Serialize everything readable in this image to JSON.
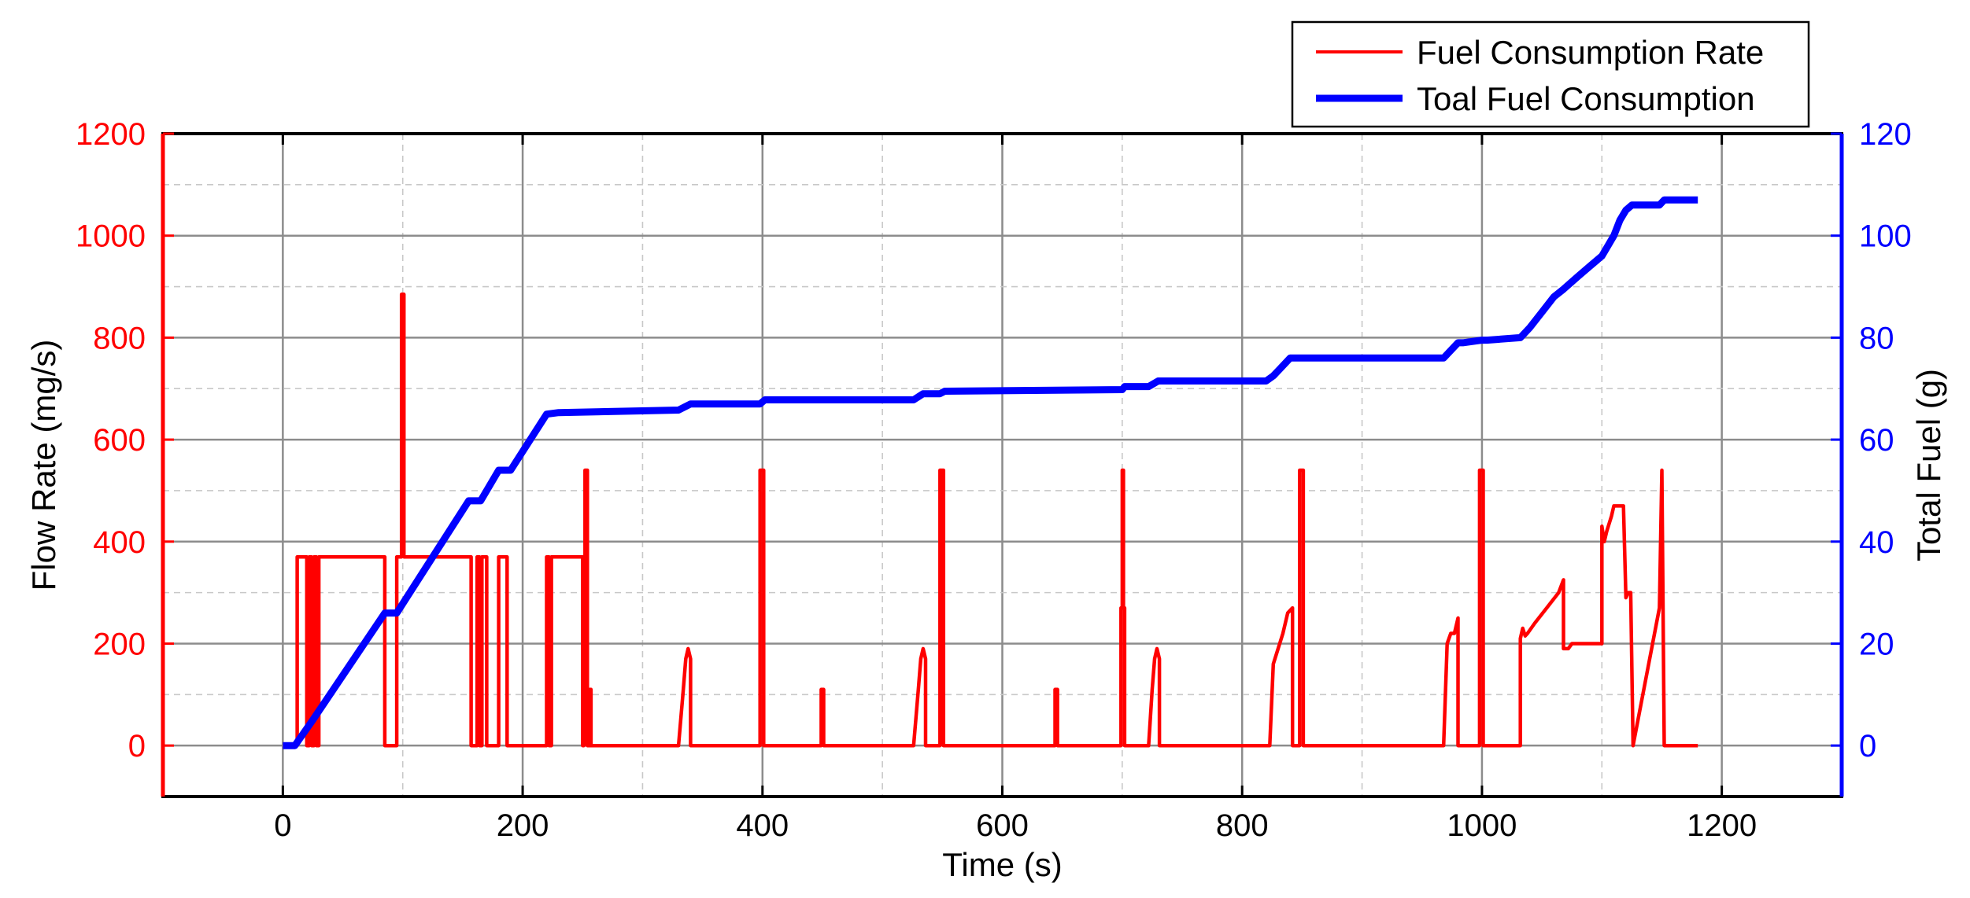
{
  "chart_data": {
    "type": "line",
    "xlabel": "Time (s)",
    "ylabel_left": "Flow Rate (mg/s)",
    "ylabel_right": "Total Fuel (g)",
    "xlim": [
      -100,
      1300
    ],
    "ylim_left": [
      -100,
      1200
    ],
    "ylim_right": [
      -10,
      120
    ],
    "x_ticks": [
      0,
      200,
      400,
      600,
      800,
      1000,
      1200
    ],
    "y_left_ticks": [
      0,
      200,
      400,
      600,
      800,
      1000,
      1200
    ],
    "y_right_ticks": [
      0,
      20,
      40,
      60,
      80,
      100,
      120
    ],
    "grid": true,
    "legend_position": "top-right",
    "colors": {
      "rate": "#ff0000",
      "total": "#0000ff",
      "left_axis": "#ff0000",
      "right_axis": "#0000ff"
    },
    "series": [
      {
        "name": "Fuel Consumption Rate",
        "axis": "left",
        "x": [
          0,
          12,
          12,
          20,
          20,
          22,
          22,
          24,
          24,
          26,
          26,
          28,
          28,
          30,
          30,
          85,
          85,
          95,
          95,
          99,
          99,
          101,
          101,
          157,
          157,
          162,
          162,
          164,
          164,
          166,
          166,
          170,
          170,
          180,
          180,
          187,
          187,
          220,
          220,
          222,
          222,
          224,
          224,
          250,
          250,
          251,
          251,
          252,
          252,
          254,
          254,
          256,
          256,
          257,
          257,
          330,
          334,
          336,
          338,
          340,
          340,
          398,
          398,
          401,
          401,
          449,
          449,
          451,
          451,
          526,
          530,
          532,
          534,
          536,
          536,
          548,
          548,
          551,
          551,
          644,
          644,
          646,
          646,
          699,
          699,
          700,
          700,
          701,
          701,
          702,
          702,
          722,
          725,
          727,
          729,
          731,
          731,
          823,
          826,
          830,
          834,
          838,
          842,
          842,
          848,
          848,
          851,
          851,
          968,
          971,
          974,
          977,
          980,
          980,
          998,
          998,
          1001,
          1001,
          1032,
          1032,
          1034,
          1036,
          1038,
          1044,
          1054,
          1064,
          1068,
          1068,
          1072,
          1075,
          1085,
          1095,
          1098,
          1100,
          1100,
          1102,
          1104,
          1108,
          1110,
          1112,
          1114,
          1116,
          1118,
          1120,
          1120,
          1122,
          1124,
          1126,
          1126,
          1148,
          1148,
          1150,
          1150,
          1151,
          1151,
          1152,
          1152,
          1180
        ],
        "y": [
          0,
          0,
          370,
          370,
          0,
          0,
          370,
          370,
          0,
          0,
          370,
          370,
          0,
          0,
          370,
          370,
          0,
          0,
          370,
          370,
          885,
          885,
          370,
          370,
          0,
          0,
          370,
          370,
          0,
          0,
          370,
          370,
          0,
          0,
          370,
          370,
          0,
          0,
          370,
          370,
          0,
          0,
          370,
          370,
          0,
          0,
          270,
          270,
          540,
          540,
          0,
          0,
          110,
          110,
          0,
          0,
          110,
          170,
          190,
          170,
          0,
          0,
          540,
          540,
          0,
          0,
          110,
          110,
          0,
          0,
          110,
          170,
          190,
          170,
          0,
          0,
          540,
          540,
          0,
          0,
          110,
          110,
          0,
          0,
          270,
          270,
          540,
          540,
          270,
          270,
          0,
          0,
          110,
          170,
          190,
          170,
          0,
          0,
          160,
          190,
          220,
          260,
          270,
          0,
          0,
          540,
          540,
          0,
          0,
          200,
          220,
          220,
          250,
          0,
          0,
          540,
          540,
          0,
          0,
          210,
          230,
          215,
          220,
          240,
          270,
          300,
          325,
          190,
          190,
          200,
          200,
          200,
          200,
          200,
          430,
          400,
          420,
          450,
          470,
          470,
          470,
          470,
          470,
          290,
          290,
          300,
          300,
          0,
          0,
          270,
          270,
          540,
          540,
          270,
          270,
          0,
          0,
          0
        ]
      },
      {
        "name": "Toal Fuel Consumption",
        "axis": "right",
        "x": [
          0,
          10,
          25,
          85,
          95,
          155,
          165,
          180,
          190,
          220,
          230,
          330,
          340,
          398,
          402,
          526,
          534,
          548,
          552,
          700,
          702,
          722,
          730,
          820,
          826,
          832,
          840,
          848,
          852,
          968,
          972,
          980,
          984,
          1000,
          1004,
          1032,
          1040,
          1050,
          1060,
          1068,
          1080,
          1090,
          1100,
          1105,
          1110,
          1115,
          1120,
          1125,
          1130,
          1140,
          1148,
          1152,
          1160,
          1170,
          1180
        ],
        "y": [
          0,
          0,
          5,
          26,
          26,
          48,
          48,
          54,
          54,
          65,
          65.3,
          65.8,
          67,
          67,
          67.8,
          67.8,
          69,
          69,
          69.5,
          69.8,
          70.4,
          70.4,
          71.5,
          71.5,
          72.5,
          74,
          76,
          76,
          76,
          76,
          77,
          79,
          79,
          79.5,
          79.5,
          80,
          82,
          85,
          88,
          89.5,
          92,
          94,
          96,
          98,
          100,
          103,
          105,
          106,
          106,
          106,
          106,
          107,
          107,
          107,
          107
        ]
      }
    ]
  }
}
